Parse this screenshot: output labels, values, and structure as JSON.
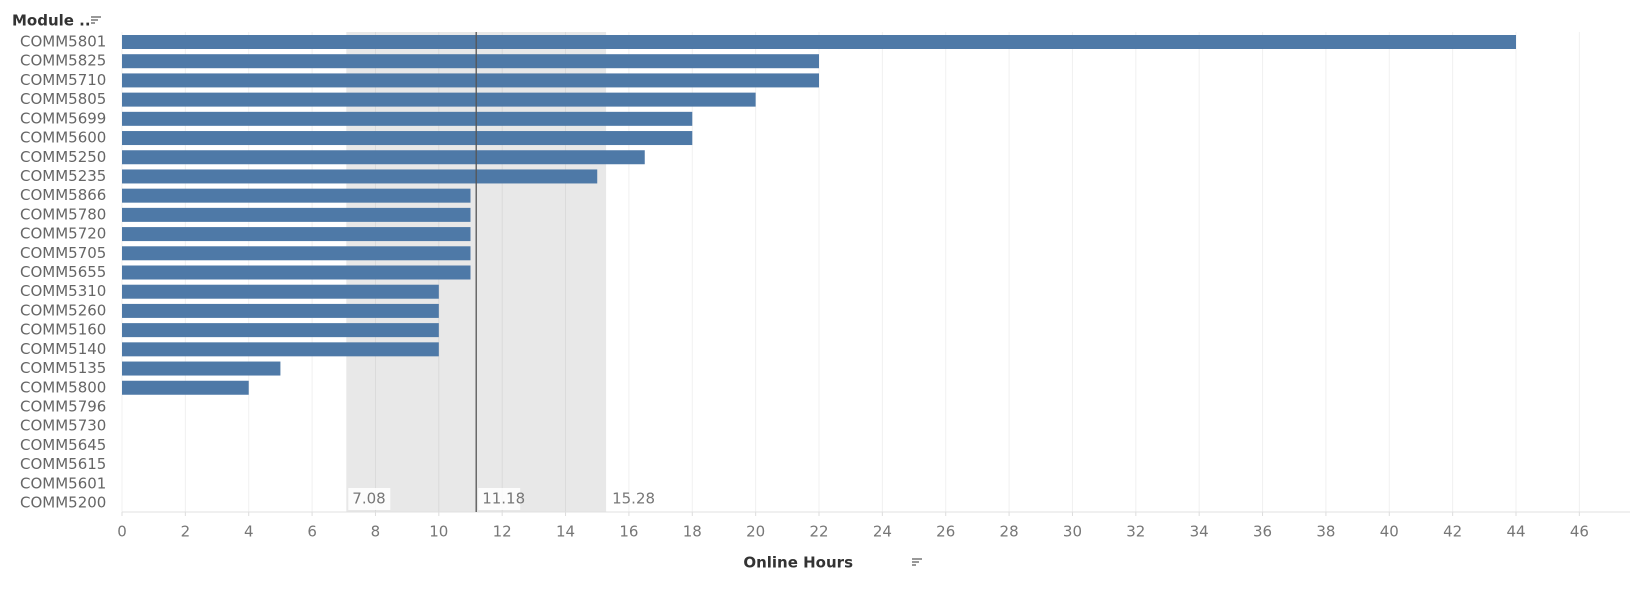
{
  "chart_data": {
    "type": "hbar",
    "y_label": "Module ..",
    "x_label": "Online Hours",
    "categories": [
      "COMM5801",
      "COMM5825",
      "COMM5710",
      "COMM5805",
      "COMM5699",
      "COMM5600",
      "COMM5250",
      "COMM5235",
      "COMM5866",
      "COMM5780",
      "COMM5720",
      "COMM5705",
      "COMM5655",
      "COMM5310",
      "COMM5260",
      "COMM5160",
      "COMM5140",
      "COMM5135",
      "COMM5800",
      "COMM5796",
      "COMM5730",
      "COMM5645",
      "COMM5615",
      "COMM5601",
      "COMM5200"
    ],
    "values": [
      44,
      22,
      22,
      20,
      18,
      18,
      16.5,
      15,
      11,
      11,
      11,
      11,
      11,
      10,
      10,
      10,
      10,
      5,
      4,
      null,
      null,
      null,
      null,
      null,
      null
    ],
    "color": "#4e79a7",
    "xlim": [
      0,
      46
    ],
    "xticks": [
      0,
      2,
      4,
      6,
      8,
      10,
      12,
      14,
      16,
      18,
      20,
      22,
      24,
      26,
      28,
      30,
      32,
      34,
      36,
      38,
      40,
      42,
      44,
      46
    ],
    "grid": true,
    "reference_band": [
      7.08,
      15.28
    ],
    "reference_line": 11.18
  }
}
